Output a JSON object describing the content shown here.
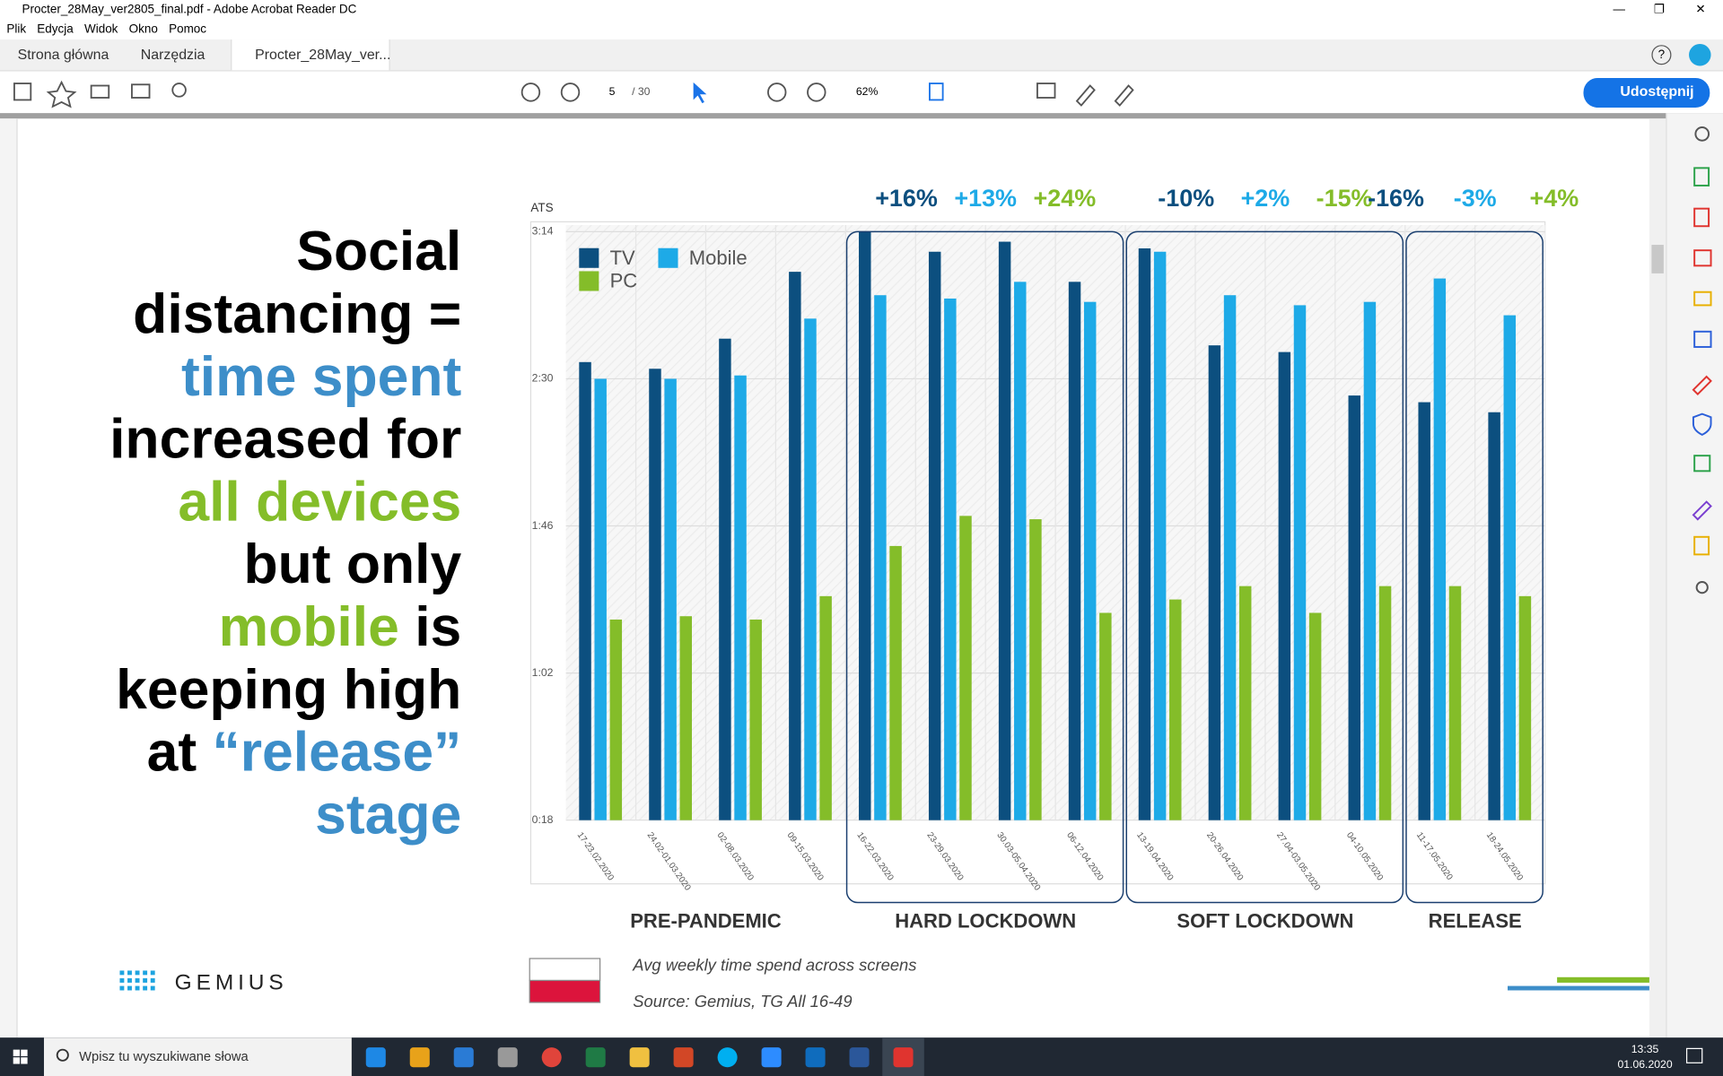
{
  "window": {
    "title": "Procter_28May_ver2805_final.pdf - Adobe Acrobat Reader DC",
    "menu": [
      "Plik",
      "Edycja",
      "Widok",
      "Okno",
      "Pomoc"
    ],
    "tabs": [
      "Strona główna",
      "Narzędzia",
      "Procter_28May_ver..."
    ],
    "page": "5",
    "page_total": "/ 30",
    "zoom": "62%",
    "share": "Udostępnij"
  },
  "slide": {
    "heading": [
      [
        {
          "text": "Social",
          "color": "#000000"
        }
      ],
      [
        {
          "text": "distancing =",
          "color": "#000000"
        }
      ],
      [
        {
          "text": "time spent",
          "color": "#3d8ec9"
        }
      ],
      [
        {
          "text": "increased for",
          "color": "#000000"
        }
      ],
      [
        {
          "text": "all devices",
          "color": "#84bd29"
        }
      ],
      [
        {
          "text": "but only",
          "color": "#000000"
        }
      ],
      [
        {
          "text": "mobile",
          "color": "#84bd29"
        },
        {
          "text": " is",
          "color": "#000000"
        }
      ],
      [
        {
          "text": "keeping high",
          "color": "#000000"
        }
      ],
      [
        {
          "text": "at ",
          "color": "#000000"
        },
        {
          "text": "“release”",
          "color": "#3d8ec9"
        }
      ],
      [
        {
          "text": "stage",
          "color": "#3d8ec9"
        }
      ]
    ],
    "logo": "GEMIUS",
    "caption": "Avg weekly time spend across screens",
    "source": "Source: Gemius, TG All 16-49"
  },
  "chart_data": {
    "type": "bar",
    "y_label": "ATS",
    "groups": [
      {
        "label": "PRE-PANDEMIC",
        "boxed": false,
        "changes": [],
        "categories": [
          "17-23.02.2020",
          "24.02-01.03.2020",
          "02-08.03.2020",
          "09-15.03.2020"
        ]
      },
      {
        "label": "HARD LOCKDOWN",
        "boxed": true,
        "changes": [
          "+16%",
          "+13%",
          "+24%"
        ],
        "categories": [
          "16-22.03.2020",
          "23-29.03.2020",
          "30.03-05.04.2020",
          "06-12.04.2020"
        ]
      },
      {
        "label": "SOFT LOCKDOWN",
        "boxed": true,
        "changes": [
          "-10%",
          "+2%",
          "-15%"
        ],
        "categories": [
          "13-19.04.2020",
          "20-26.04.2020",
          "27.04-03.05.2020",
          "04-10.05.2020"
        ]
      },
      {
        "label": "RELEASE",
        "boxed": true,
        "changes": [
          "-16%",
          "-3%",
          "+4%"
        ],
        "categories": [
          "11-17.05.2020",
          "18-24.05.2020"
        ]
      }
    ],
    "series": [
      {
        "name": "TV",
        "color": "#0c4f7f",
        "values": [
          155,
          153,
          162,
          182,
          194,
          188,
          191,
          179,
          189,
          160,
          158,
          145,
          143,
          140
        ]
      },
      {
        "name": "Mobile",
        "color": "#1eaae7",
        "values": [
          150,
          150,
          151,
          168,
          175,
          174,
          179,
          173,
          188,
          175,
          172,
          173,
          180,
          169
        ]
      },
      {
        "name": "PC",
        "color": "#84bd29",
        "values": [
          78,
          79,
          78,
          85,
          100,
          109,
          108,
          80,
          84,
          88,
          80,
          88,
          88,
          85
        ]
      }
    ],
    "ylim": [
      18,
      194
    ],
    "yticks": [
      {
        "value": 18,
        "label": "0:18"
      },
      {
        "value": 62,
        "label": "1:02"
      },
      {
        "value": 106,
        "label": "1:46"
      },
      {
        "value": 150,
        "label": "2:30"
      },
      {
        "value": 194,
        "label": "3:14"
      }
    ],
    "grid": true
  },
  "taskbar": {
    "search": "Wpisz tu wyszukiwane słowa",
    "time": "13:35",
    "date": "01.06.2020"
  }
}
